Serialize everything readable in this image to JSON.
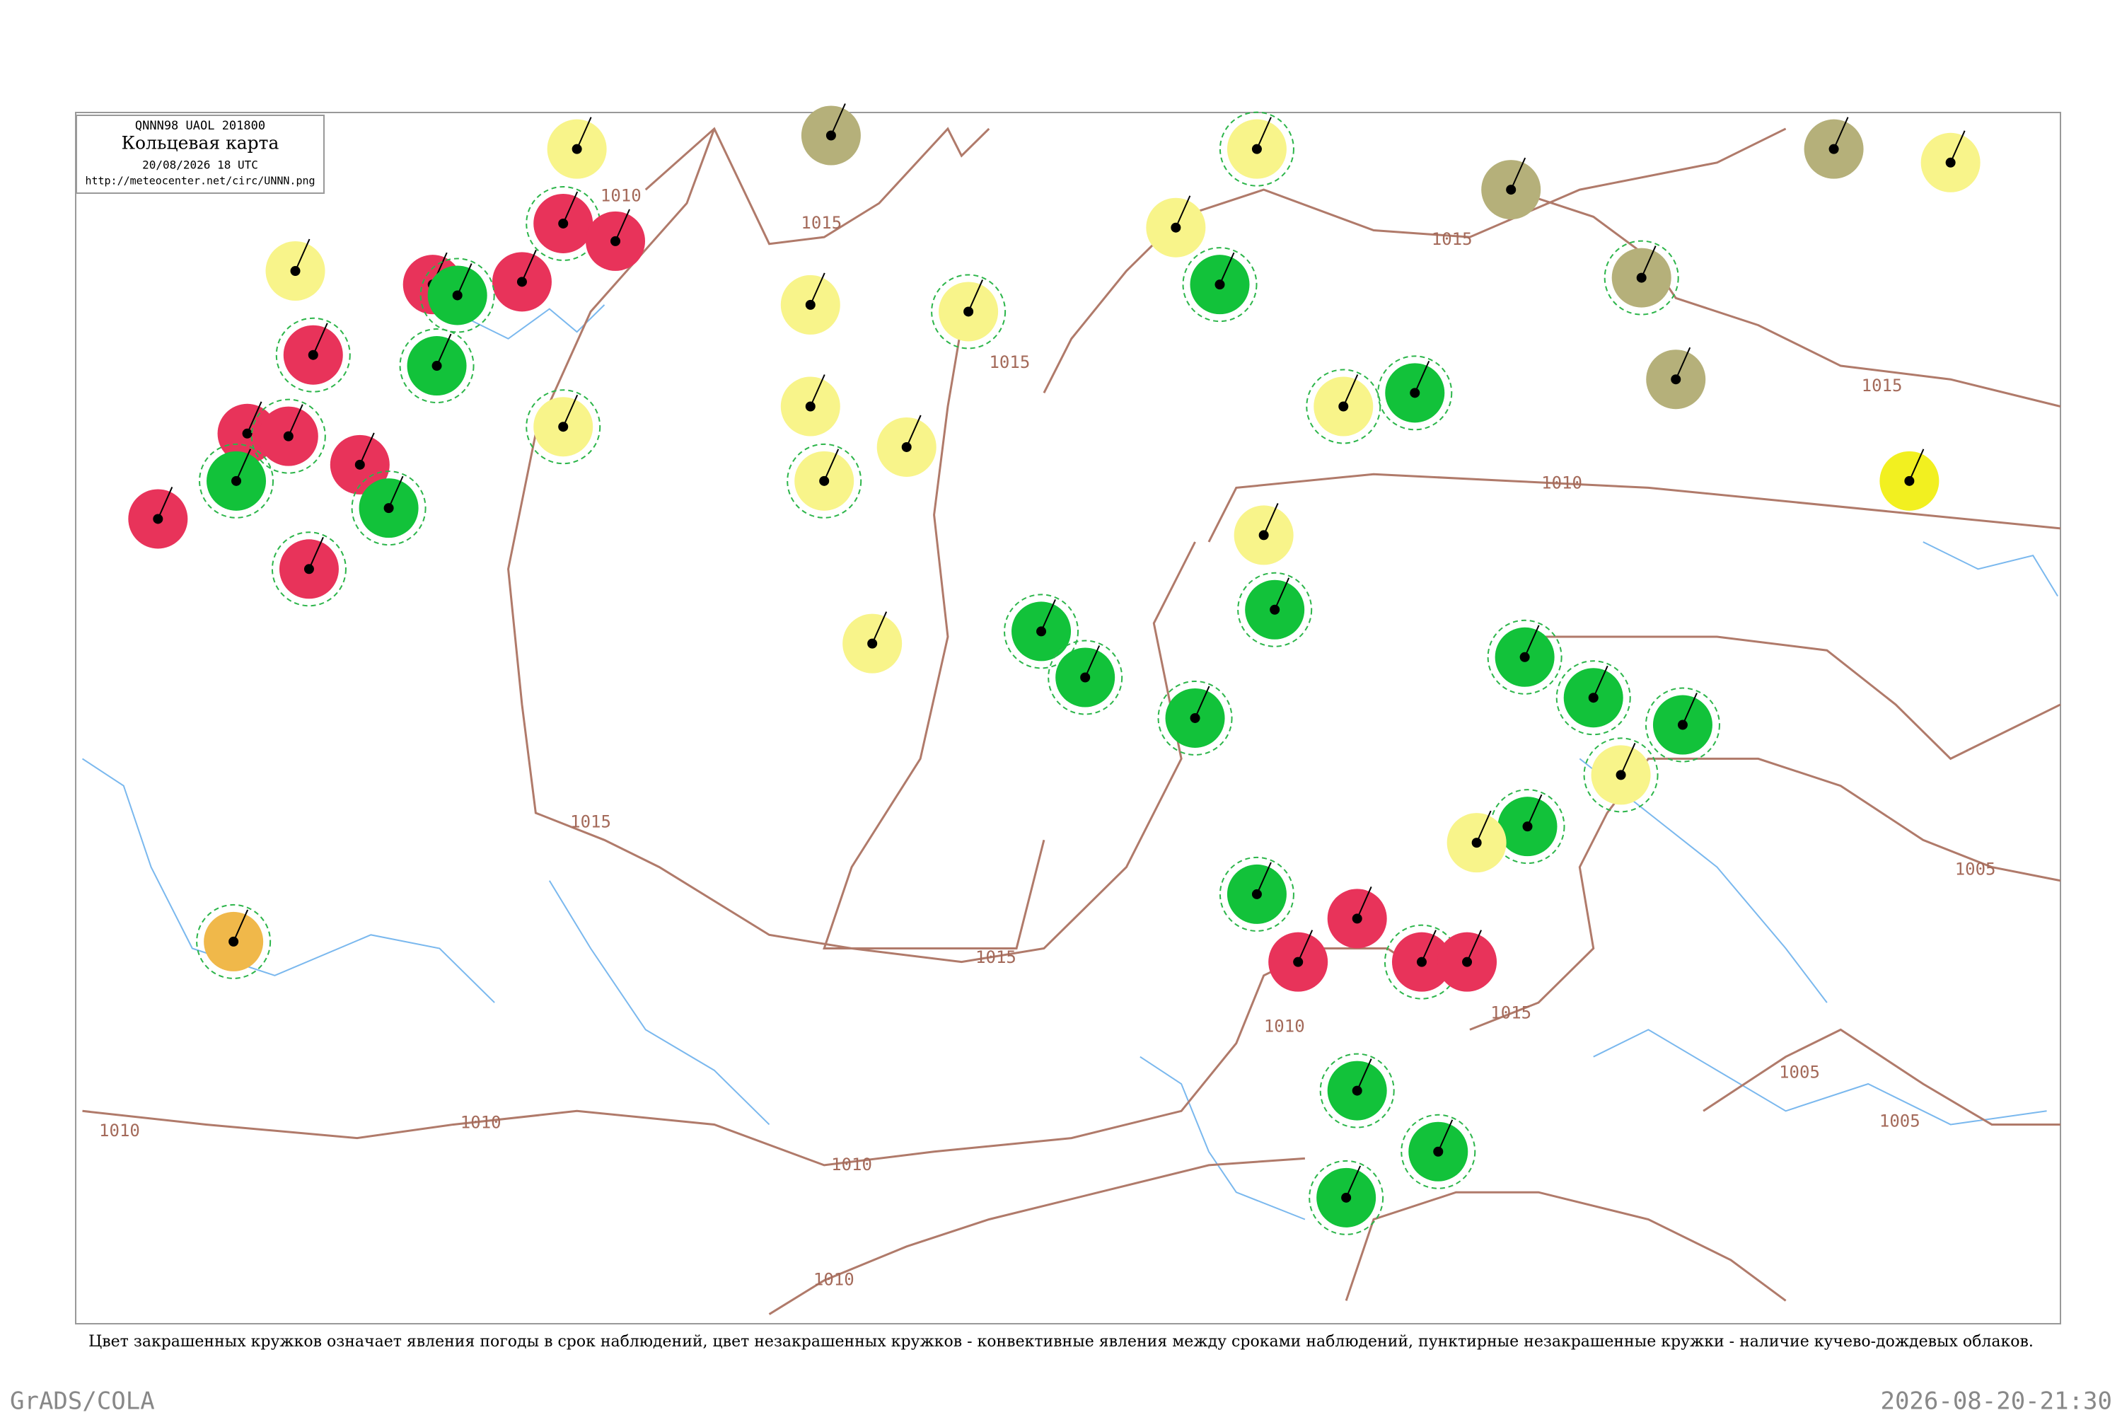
{
  "header": {
    "code": "QNNN98  UAOL  201800",
    "title": "Кольцевая карта",
    "date": "20/08/2026 18 UTC",
    "url": "http://meteocenter.net/circ/UNNN.png"
  },
  "isobar_labels": [
    "1010",
    "1015",
    "1015",
    "1015",
    "1015",
    "1010",
    "1015",
    "1015",
    "1010",
    "1010",
    "1010",
    "1010",
    "1015",
    "1010",
    "1005",
    "1005",
    "1005"
  ],
  "stations": [
    {
      "color": "#e8335a"
    },
    {
      "color": "#e8335a"
    },
    {
      "color": "#e8335a"
    },
    {
      "color": "#e8335a"
    },
    {
      "color": "#e8335a"
    },
    {
      "color": "#e8335a"
    },
    {
      "color": "#e8335a"
    },
    {
      "color": "#e8335a"
    },
    {
      "color": "#e8335a"
    },
    {
      "color": "#e8335a"
    },
    {
      "color": "#e8335a"
    },
    {
      "color": "#e8335a"
    },
    {
      "color": "#e8335a"
    },
    {
      "color": "#e8335a"
    },
    {
      "color": "#12c23a"
    },
    {
      "color": "#12c23a"
    },
    {
      "color": "#12c23a"
    },
    {
      "color": "#12c23a"
    },
    {
      "color": "#12c23a"
    },
    {
      "color": "#12c23a"
    },
    {
      "color": "#12c23a"
    },
    {
      "color": "#12c23a"
    },
    {
      "color": "#12c23a"
    },
    {
      "color": "#12c23a"
    },
    {
      "color": "#12c23a"
    },
    {
      "color": "#12c23a"
    },
    {
      "color": "#12c23a"
    },
    {
      "color": "#12c23a"
    },
    {
      "color": "#12c23a"
    },
    {
      "color": "#12c23a"
    },
    {
      "color": "#12c23a"
    },
    {
      "color": "#12c23a"
    },
    {
      "color": "#f8f48a"
    },
    {
      "color": "#f8f48a"
    },
    {
      "color": "#f8f48a"
    },
    {
      "color": "#f8f48a"
    },
    {
      "color": "#f8f48a"
    },
    {
      "color": "#f8f48a"
    },
    {
      "color": "#f8f48a"
    },
    {
      "color": "#f8f48a"
    },
    {
      "color": "#f8f48a"
    },
    {
      "color": "#f8f48a"
    },
    {
      "color": "#f8f48a"
    },
    {
      "color": "#f2f020"
    },
    {
      "color": "#f8f48a"
    },
    {
      "color": "#f8f48a"
    },
    {
      "color": "#f8f48a"
    },
    {
      "color": "#f8f48a"
    },
    {
      "color": "#f8f48a"
    },
    {
      "color": "#b5b07a"
    },
    {
      "color": "#b5b07a"
    },
    {
      "color": "#b5b07a"
    },
    {
      "color": "#b5b07a"
    },
    {
      "color": "#b5b07a"
    },
    {
      "color": "#f0b84a"
    }
  ],
  "note": "Цвет закрашенных кружков означает явления погоды в срок наблюдений, цвет незакрашенных кружков - конвективные явления между сроками наблюдений, пунктирные незакрашенные кружки - наличие кучево-дождевых облаков.",
  "footer": {
    "left": "GrADS/COLA",
    "right": "2026-08-20-21:30"
  }
}
